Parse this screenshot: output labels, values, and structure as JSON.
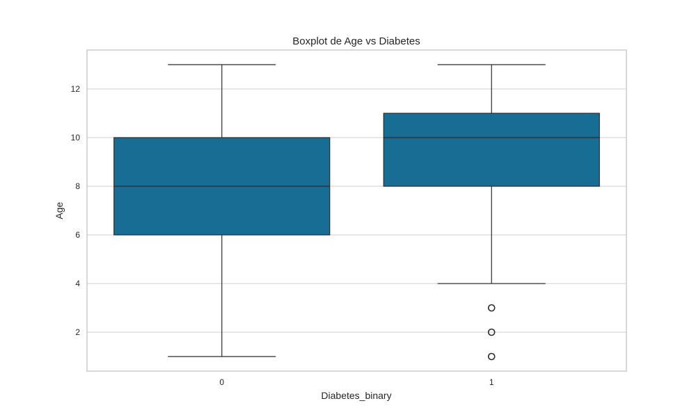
{
  "chart_data": {
    "type": "box",
    "title": "Boxplot de Age vs Diabetes",
    "xlabel": "Diabetes_binary",
    "ylabel": "Age",
    "categories": [
      "0",
      "1"
    ],
    "boxes": [
      {
        "category": "0",
        "whisker_low": 1,
        "q1": 6,
        "median": 8,
        "q3": 10,
        "whisker_high": 13,
        "outliers": []
      },
      {
        "category": "1",
        "whisker_low": 4,
        "q1": 8,
        "median": 10,
        "q3": 11,
        "whisker_high": 13,
        "outliers": [
          1,
          2,
          3
        ]
      }
    ],
    "ylim": [
      0.4,
      13.6
    ],
    "yticks": [
      2,
      4,
      6,
      8,
      10,
      12
    ],
    "grid": true,
    "box_color": "#176d93",
    "line_color": "#2b2b2b",
    "grid_color": "#cccccc",
    "frame_color": "#cccccc"
  }
}
